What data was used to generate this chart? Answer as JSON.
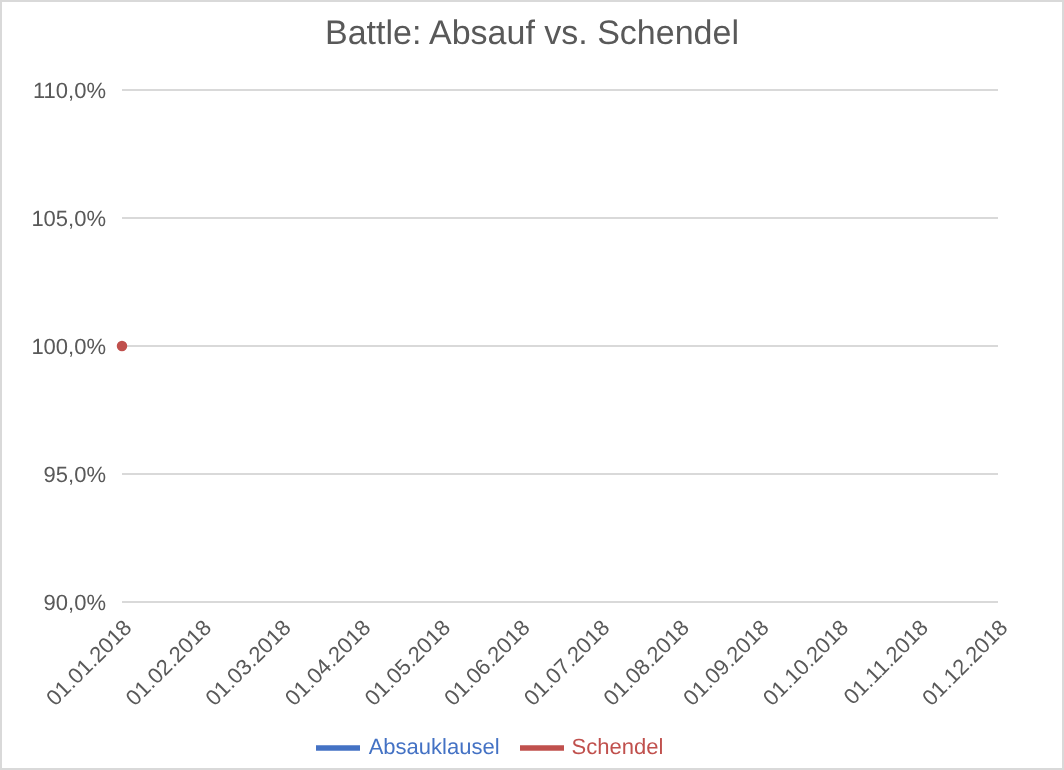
{
  "chart_data": {
    "type": "line",
    "title": "Battle: Absauf vs. Schendel",
    "categories": [
      "01.01.2018",
      "01.02.2018",
      "01.03.2018",
      "01.04.2018",
      "01.05.2018",
      "01.06.2018",
      "01.07.2018",
      "01.08.2018",
      "01.09.2018",
      "01.10.2018",
      "01.11.2018",
      "01.12.2018"
    ],
    "series": [
      {
        "name": "Absauklausel",
        "color": "#4472c4",
        "values": [
          null,
          null,
          null,
          null,
          null,
          null,
          null,
          null,
          null,
          null,
          null,
          null
        ]
      },
      {
        "name": "Schendel",
        "color": "#c0504d",
        "values": [
          100,
          null,
          null,
          null,
          null,
          null,
          null,
          null,
          null,
          null,
          null,
          null
        ]
      }
    ],
    "ylim": [
      90,
      110
    ],
    "yticks": [
      {
        "value": 90,
        "label": "90,0%"
      },
      {
        "value": 95,
        "label": "95,0%"
      },
      {
        "value": 100,
        "label": "100,0%"
      },
      {
        "value": 105,
        "label": "105,0%"
      },
      {
        "value": 110,
        "label": "110,0%"
      }
    ],
    "grid": "y",
    "legend": "bottom",
    "marker": "circle",
    "line_style": "solid"
  }
}
